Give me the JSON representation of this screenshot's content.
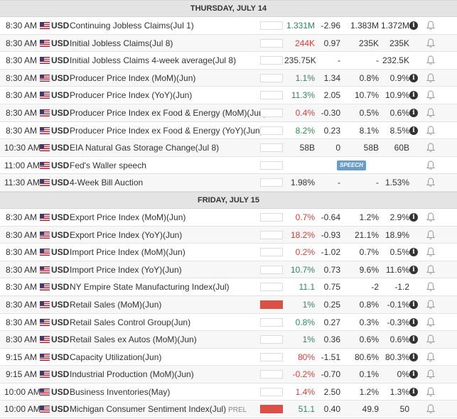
{
  "days": [
    {
      "label": "THURSDAY, JULY 14",
      "events": [
        {
          "time": "8:30 AM",
          "currency": "USD",
          "name": "Continuing Jobless Claims(Jul 1)",
          "impact": "low",
          "actual": "1.331M",
          "actual_dir": "pos",
          "deviation": "-2.96",
          "forecast": "1.383M",
          "previous": "1.372M",
          "info": true
        },
        {
          "time": "8:30 AM",
          "currency": "USD",
          "name": "Initial Jobless Claims(Jul 8)",
          "impact": "med",
          "actual": "244K",
          "actual_dir": "neg",
          "deviation": "0.97",
          "forecast": "235K",
          "previous": "235K"
        },
        {
          "time": "8:30 AM",
          "currency": "USD",
          "name": "Initial Jobless Claims 4-week average(Jul 8)",
          "impact": "med",
          "actual": "235.75K",
          "actual_dir": "neu",
          "deviation": "-",
          "forecast": "-",
          "previous": "232.5K"
        },
        {
          "time": "8:30 AM",
          "currency": "USD",
          "name": "Producer Price Index (MoM)(Jun)",
          "impact": "low",
          "actual": "1.1%",
          "actual_dir": "pos",
          "deviation": "1.34",
          "forecast": "0.8%",
          "previous": "0.9%",
          "info": true
        },
        {
          "time": "8:30 AM",
          "currency": "USD",
          "name": "Producer Price Index (YoY)(Jun)",
          "impact": "low",
          "actual": "11.3%",
          "actual_dir": "pos",
          "deviation": "2.05",
          "forecast": "10.7%",
          "previous": "10.9%",
          "info": true
        },
        {
          "time": "8:30 AM",
          "currency": "USD",
          "name": "Producer Price Index ex Food & Energy (MoM)(Jun)",
          "impact": "low",
          "actual": "0.4%",
          "actual_dir": "neg",
          "deviation": "-0.30",
          "forecast": "0.5%",
          "previous": "0.6%",
          "info": true
        },
        {
          "time": "8:30 AM",
          "currency": "USD",
          "name": "Producer Price Index ex Food & Energy (YoY)(Jun)",
          "impact": "med",
          "actual": "8.2%",
          "actual_dir": "pos",
          "deviation": "0.23",
          "forecast": "8.1%",
          "previous": "8.5%",
          "info": true
        },
        {
          "time": "10:30 AM",
          "currency": "USD",
          "name": "EIA Natural Gas Storage Change(Jul 8)",
          "impact": "low",
          "actual": "58B",
          "actual_dir": "neu",
          "deviation": "0",
          "forecast": "58B",
          "previous": "60B"
        },
        {
          "time": "11:00 AM",
          "currency": "USD",
          "name": "Fed's Waller speech",
          "impact": "med",
          "actual": "",
          "actual_dir": "neu",
          "deviation": "",
          "forecast": "",
          "previous": "",
          "speech": "SPEECH"
        },
        {
          "time": "11:30 AM",
          "currency": "USD",
          "name": "4-Week Bill Auction",
          "impact": "low",
          "actual": "1.98%",
          "actual_dir": "neu",
          "deviation": "-",
          "forecast": "-",
          "previous": "1.53%"
        }
      ]
    },
    {
      "label": "FRIDAY, JULY 15",
      "events": [
        {
          "time": "8:30 AM",
          "currency": "USD",
          "name": "Export Price Index (MoM)(Jun)",
          "impact": "low",
          "actual": "0.7%",
          "actual_dir": "neg",
          "deviation": "-0.64",
          "forecast": "1.2%",
          "previous": "2.9%",
          "info": true
        },
        {
          "time": "8:30 AM",
          "currency": "USD",
          "name": "Export Price Index (YoY)(Jun)",
          "impact": "low",
          "actual": "18.2%",
          "actual_dir": "neg",
          "deviation": "-0.93",
          "forecast": "21.1%",
          "previous": "18.9%"
        },
        {
          "time": "8:30 AM",
          "currency": "USD",
          "name": "Import Price Index (MoM)(Jun)",
          "impact": "low",
          "actual": "0.2%",
          "actual_dir": "neg",
          "deviation": "-1.02",
          "forecast": "0.7%",
          "previous": "0.5%",
          "info": true
        },
        {
          "time": "8:30 AM",
          "currency": "USD",
          "name": "Import Price Index (YoY)(Jun)",
          "impact": "low",
          "actual": "10.7%",
          "actual_dir": "pos",
          "deviation": "0.73",
          "forecast": "9.6%",
          "previous": "11.6%",
          "info": true
        },
        {
          "time": "8:30 AM",
          "currency": "USD",
          "name": "NY Empire State Manufacturing Index(Jul)",
          "impact": "low",
          "actual": "11.1",
          "actual_dir": "pos",
          "deviation": "0.75",
          "forecast": "-2",
          "previous": "-1.2"
        },
        {
          "time": "8:30 AM",
          "currency": "USD",
          "name": "Retail Sales (MoM)(Jun)",
          "impact": "high",
          "actual": "1%",
          "actual_dir": "pos",
          "deviation": "0.25",
          "forecast": "0.8%",
          "previous": "-0.1%",
          "info": true
        },
        {
          "time": "8:30 AM",
          "currency": "USD",
          "name": "Retail Sales Control Group(Jun)",
          "impact": "low",
          "actual": "0.8%",
          "actual_dir": "pos",
          "deviation": "0.27",
          "forecast": "0.3%",
          "previous": "-0.3%",
          "info": true
        },
        {
          "time": "8:30 AM",
          "currency": "USD",
          "name": "Retail Sales ex Autos (MoM)(Jun)",
          "impact": "med",
          "actual": "1%",
          "actual_dir": "pos",
          "deviation": "0.36",
          "forecast": "0.6%",
          "previous": "0.6%",
          "info": true
        },
        {
          "time": "9:15 AM",
          "currency": "USD",
          "name": "Capacity Utilization(Jun)",
          "impact": "low",
          "actual": "80%",
          "actual_dir": "neg",
          "deviation": "-1.51",
          "forecast": "80.6%",
          "previous": "80.3%",
          "info": true
        },
        {
          "time": "9:15 AM",
          "currency": "USD",
          "name": "Industrial Production (MoM)(Jun)",
          "impact": "low",
          "actual": "-0.2%",
          "actual_dir": "neg",
          "deviation": "-0.70",
          "forecast": "0.1%",
          "previous": "0%",
          "info": true
        },
        {
          "time": "10:00 AM",
          "currency": "USD",
          "name": "Business Inventories(May)",
          "impact": "low",
          "actual": "1.4%",
          "actual_dir": "neg",
          "deviation": "2.50",
          "forecast": "1.2%",
          "previous": "1.3%",
          "info": true
        },
        {
          "time": "10:00 AM",
          "currency": "USD",
          "name": "Michigan Consumer Sentiment Index(Jul)",
          "tag": "PREL",
          "impact": "high",
          "actual": "51.1",
          "actual_dir": "pos",
          "deviation": "0.40",
          "forecast": "49.9",
          "previous": "50"
        }
      ]
    }
  ]
}
